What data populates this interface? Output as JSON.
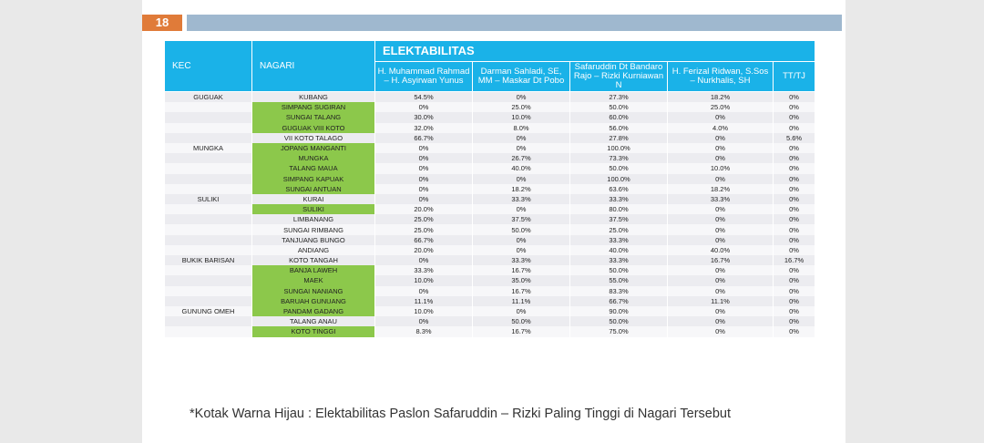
{
  "slide_number": "18",
  "table": {
    "header_group": "ELEKTABILITAS",
    "col_kec": "KEC",
    "col_nagari": "NAGARI",
    "candidates": [
      "H. Muhammad Rahmad – H. Asyirwan Yunus",
      "Darman Sahladi, SE, MM – Maskar Dt Pobo",
      "Safaruddin Dt Bandaro Rajo – Rizki Kurniawan N",
      "H. Ferizal Ridwan, S.Sos – Nurkhalis, SH",
      "TT/TJ"
    ],
    "rows": [
      {
        "kec": "GUGUAK",
        "nagari": "KUBANG",
        "values": [
          "54.5%",
          "0%",
          "27.3%",
          "18.2%",
          "0%"
        ],
        "green": false
      },
      {
        "kec": "",
        "nagari": "SIMPANG SUGIRAN",
        "values": [
          "0%",
          "25.0%",
          "50.0%",
          "25.0%",
          "0%"
        ],
        "green": true
      },
      {
        "kec": "",
        "nagari": "SUNGAI TALANG",
        "values": [
          "30.0%",
          "10.0%",
          "60.0%",
          "0%",
          "0%"
        ],
        "green": true
      },
      {
        "kec": "",
        "nagari": "GUGUAK VIII KOTO",
        "values": [
          "32.0%",
          "8.0%",
          "56.0%",
          "4.0%",
          "0%"
        ],
        "green": true
      },
      {
        "kec": "",
        "nagari": "VII KOTO TALAGO",
        "values": [
          "66.7%",
          "0%",
          "27.8%",
          "0%",
          "5.6%"
        ],
        "green": false
      },
      {
        "kec": "MUNGKA",
        "nagari": "JOPANG MANGANTI",
        "values": [
          "0%",
          "0%",
          "100.0%",
          "0%",
          "0%"
        ],
        "green": true
      },
      {
        "kec": "",
        "nagari": "MUNGKA",
        "values": [
          "0%",
          "26.7%",
          "73.3%",
          "0%",
          "0%"
        ],
        "green": true
      },
      {
        "kec": "",
        "nagari": "TALANG MAUA",
        "values": [
          "0%",
          "40.0%",
          "50.0%",
          "10.0%",
          "0%"
        ],
        "green": true
      },
      {
        "kec": "",
        "nagari": "SIMPANG KAPUAK",
        "values": [
          "0%",
          "0%",
          "100.0%",
          "0%",
          "0%"
        ],
        "green": true
      },
      {
        "kec": "",
        "nagari": "SUNGAI ANTUAN",
        "values": [
          "0%",
          "18.2%",
          "63.6%",
          "18.2%",
          "0%"
        ],
        "green": true
      },
      {
        "kec": "SULIKI",
        "nagari": "KURAI",
        "values": [
          "0%",
          "33.3%",
          "33.3%",
          "33.3%",
          "0%"
        ],
        "green": false
      },
      {
        "kec": "",
        "nagari": "SULIKI",
        "values": [
          "20.0%",
          "0%",
          "80.0%",
          "0%",
          "0%"
        ],
        "green": true
      },
      {
        "kec": "",
        "nagari": "LIMBANANG",
        "values": [
          "25.0%",
          "37.5%",
          "37.5%",
          "0%",
          "0%"
        ],
        "green": false
      },
      {
        "kec": "",
        "nagari": "SUNGAI RIMBANG",
        "values": [
          "25.0%",
          "50.0%",
          "25.0%",
          "0%",
          "0%"
        ],
        "green": false
      },
      {
        "kec": "",
        "nagari": "TANJUANG BUNGO",
        "values": [
          "66.7%",
          "0%",
          "33.3%",
          "0%",
          "0%"
        ],
        "green": false
      },
      {
        "kec": "",
        "nagari": "ANDIANG",
        "values": [
          "20.0%",
          "0%",
          "40.0%",
          "40.0%",
          "0%"
        ],
        "green": false
      },
      {
        "kec": "BUKIK BARISAN",
        "nagari": "KOTO TANGAH",
        "values": [
          "0%",
          "33.3%",
          "33.3%",
          "16.7%",
          "16.7%"
        ],
        "green": false
      },
      {
        "kec": "",
        "nagari": "BANJA LAWEH",
        "values": [
          "33.3%",
          "16.7%",
          "50.0%",
          "0%",
          "0%"
        ],
        "green": true
      },
      {
        "kec": "",
        "nagari": "MAEK",
        "values": [
          "10.0%",
          "35.0%",
          "55.0%",
          "0%",
          "0%"
        ],
        "green": true
      },
      {
        "kec": "",
        "nagari": "SUNGAI NANIANG",
        "values": [
          "0%",
          "16.7%",
          "83.3%",
          "0%",
          "0%"
        ],
        "green": true
      },
      {
        "kec": "",
        "nagari": "BARUAH GUNUANG",
        "values": [
          "11.1%",
          "11.1%",
          "66.7%",
          "11.1%",
          "0%"
        ],
        "green": true
      },
      {
        "kec": "GUNUNG OMEH",
        "nagari": "PANDAM GADANG",
        "values": [
          "10.0%",
          "0%",
          "90.0%",
          "0%",
          "0%"
        ],
        "green": true
      },
      {
        "kec": "",
        "nagari": "TALANG ANAU",
        "values": [
          "0%",
          "50.0%",
          "50.0%",
          "0%",
          "0%"
        ],
        "green": false
      },
      {
        "kec": "",
        "nagari": "KOTO TINGGI",
        "values": [
          "8.3%",
          "16.7%",
          "75.0%",
          "0%",
          "0%"
        ],
        "green": true
      }
    ]
  },
  "footnote": "*Kotak Warna Hijau : Elektabilitas Paslon Safaruddin – Rizki Paling Tinggi di Nagari Tersebut",
  "colors": {
    "header": "#1ab2e8",
    "highlight": "#8cc84b",
    "badge": "#e07b39",
    "topbar": "#9fb8cf"
  }
}
